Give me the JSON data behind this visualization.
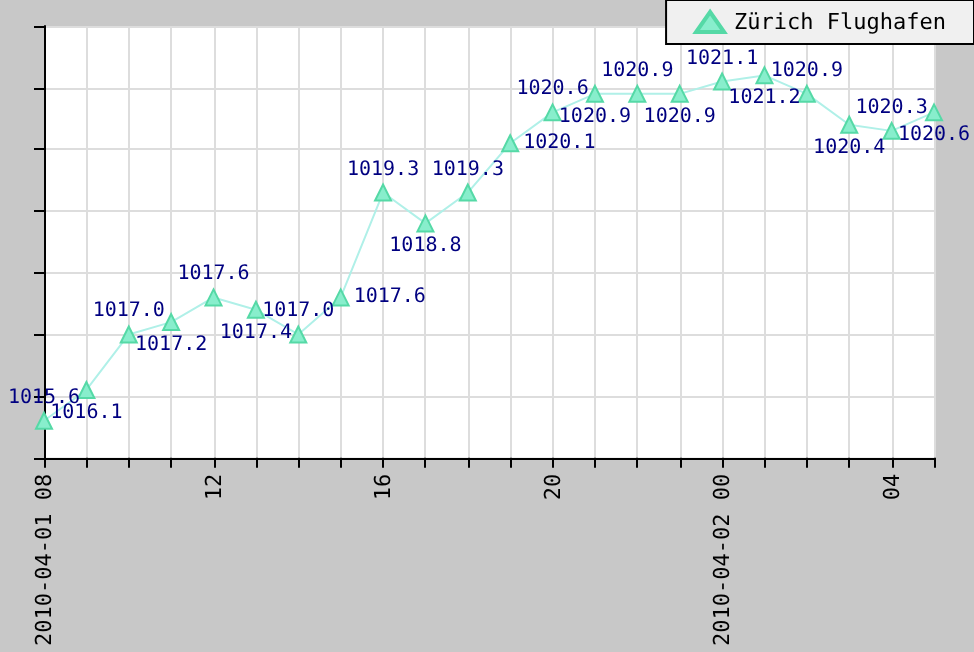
{
  "chart_data": {
    "type": "line",
    "x": [
      "2010-04-01T08:00",
      "2010-04-01T09:00",
      "2010-04-01T10:00",
      "2010-04-01T11:00",
      "2010-04-01T12:00",
      "2010-04-01T13:00",
      "2010-04-01T14:00",
      "2010-04-01T15:00",
      "2010-04-01T16:00",
      "2010-04-01T17:00",
      "2010-04-01T18:00",
      "2010-04-01T19:00",
      "2010-04-01T20:00",
      "2010-04-01T21:00",
      "2010-04-01T22:00",
      "2010-04-01T23:00",
      "2010-04-02T00:00",
      "2010-04-02T01:00",
      "2010-04-02T02:00",
      "2010-04-02T03:00",
      "2010-04-02T04:00",
      "2010-04-02T05:00"
    ],
    "series": [
      {
        "name": "Zürich Flughafen",
        "color": "#55d9a6",
        "values": [
          1015.6,
          1016.1,
          1017.0,
          1017.2,
          1017.6,
          1017.4,
          1017.0,
          1017.6,
          1019.3,
          1018.8,
          1019.3,
          1020.1,
          1020.6,
          1020.9,
          1020.9,
          1020.9,
          1021.1,
          1021.2,
          1020.9,
          1020.4,
          1020.3,
          1020.6
        ],
        "value_labels": [
          "1015.6",
          "1016.1",
          "1017.0",
          "1017.2",
          "1017.6",
          "1017.4",
          "1017.0",
          "1017.6",
          "1019.3",
          "1018.8",
          "1019.3",
          "1020.1",
          "1020.6",
          "1020.9",
          "1020.9",
          "1020.9",
          "1021.1",
          "1021.2",
          "1020.9",
          "1020.4",
          "1020.3",
          "1020.6"
        ]
      }
    ],
    "xlim": [
      "2010-04-01T08:00",
      "2010-04-02T05:00"
    ],
    "xticks": [
      {
        "value": "2010-04-01T08:00",
        "label": "2010-04-01 08"
      },
      {
        "value": "2010-04-01T09:00",
        "label": null
      },
      {
        "value": "2010-04-01T10:00",
        "label": null
      },
      {
        "value": "2010-04-01T11:00",
        "label": null
      },
      {
        "value": "2010-04-01T12:00",
        "label": "12"
      },
      {
        "value": "2010-04-01T13:00",
        "label": null
      },
      {
        "value": "2010-04-01T14:00",
        "label": null
      },
      {
        "value": "2010-04-01T15:00",
        "label": null
      },
      {
        "value": "2010-04-01T16:00",
        "label": "16"
      },
      {
        "value": "2010-04-01T17:00",
        "label": null
      },
      {
        "value": "2010-04-01T18:00",
        "label": null
      },
      {
        "value": "2010-04-01T19:00",
        "label": null
      },
      {
        "value": "2010-04-01T20:00",
        "label": "20"
      },
      {
        "value": "2010-04-01T21:00",
        "label": null
      },
      {
        "value": "2010-04-01T22:00",
        "label": null
      },
      {
        "value": "2010-04-01T23:00",
        "label": null
      },
      {
        "value": "2010-04-02T00:00",
        "label": "2010-04-02 00"
      },
      {
        "value": "2010-04-02T01:00",
        "label": null
      },
      {
        "value": "2010-04-02T02:00",
        "label": null
      },
      {
        "value": "2010-04-02T03:00",
        "label": null
      },
      {
        "value": "2010-04-02T04:00",
        "label": "04"
      },
      {
        "value": "2010-04-02T05:00",
        "label": null
      }
    ],
    "tick_labels": "x",
    "grid": true,
    "legend": "top right",
    "marker": "triangle",
    "line_style": "solid"
  }
}
